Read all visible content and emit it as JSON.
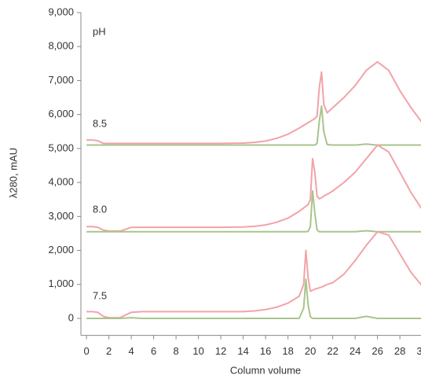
{
  "chart_data": {
    "type": "line",
    "x_label": "Column volume",
    "y_label": "λ280, mAU",
    "annotations": [
      "pH",
      "8.5",
      "8.0",
      "7.5"
    ],
    "x": [
      0,
      0.5,
      1,
      1.5,
      2,
      2.5,
      3,
      4,
      5,
      6,
      8,
      10,
      12,
      14,
      15,
      16,
      17,
      18,
      19,
      19.4,
      19.6,
      19.8,
      20,
      20.2,
      20.4,
      20.6,
      20.8,
      21,
      21.2,
      21.5,
      22,
      23,
      24,
      25,
      26,
      27,
      28,
      29,
      30
    ],
    "xlim": [
      -0.5,
      30.5
    ],
    "ylim": [
      -500,
      9000
    ],
    "xticks": [
      0,
      2,
      4,
      6,
      8,
      10,
      12,
      14,
      16,
      18,
      20,
      22,
      24,
      26,
      28,
      30
    ],
    "yticks": [
      0,
      {
        "value": 1000,
        "label": "1,000"
      },
      {
        "value": 2000,
        "label": "2,000"
      },
      {
        "value": 3000,
        "label": "3,000"
      },
      {
        "value": 4000,
        "label": "4,000"
      },
      {
        "value": 5000,
        "label": "5,000"
      },
      {
        "value": 6000,
        "label": "6,000"
      },
      {
        "value": 7000,
        "label": "7,000"
      },
      {
        "value": 8000,
        "label": "8,000"
      },
      {
        "value": 9000,
        "label": "9,000"
      }
    ],
    "grid": false,
    "series": [
      {
        "color": "#f2a3a8",
        "values": [
          5250,
          5250,
          5230,
          5150,
          5150,
          5150,
          5150,
          5150,
          5150,
          5150,
          5150,
          5150,
          5150,
          5160,
          5180,
          5220,
          5300,
          5420,
          5600,
          5680,
          5720,
          5760,
          5800,
          5840,
          5880,
          5950,
          6800,
          7250,
          6300,
          6050,
          6200,
          6500,
          6850,
          7300,
          7550,
          7300,
          6700,
          6200,
          5750
        ]
      },
      {
        "color": "#a9c48c",
        "values": [
          5100,
          5100,
          5100,
          5100,
          5100,
          5100,
          5100,
          5100,
          5100,
          5100,
          5100,
          5100,
          5100,
          5100,
          5100,
          5100,
          5100,
          5100,
          5100,
          5100,
          5100,
          5100,
          5100,
          5100,
          5100,
          5150,
          5800,
          6250,
          5500,
          5120,
          5100,
          5100,
          5100,
          5130,
          5100,
          5100,
          5100,
          5100,
          5100
        ]
      },
      {
        "color": "#f2a3a8",
        "values": [
          2700,
          2700,
          2680,
          2600,
          2570,
          2570,
          2570,
          2680,
          2680,
          2680,
          2680,
          2680,
          2680,
          2690,
          2710,
          2750,
          2830,
          2950,
          3150,
          3250,
          3300,
          3350,
          3500,
          4700,
          4300,
          3600,
          3520,
          3550,
          3600,
          3650,
          3750,
          4000,
          4300,
          4700,
          5100,
          4900,
          4300,
          3700,
          3200
        ]
      },
      {
        "color": "#a9c48c",
        "values": [
          2550,
          2550,
          2550,
          2550,
          2550,
          2550,
          2550,
          2550,
          2550,
          2550,
          2550,
          2550,
          2550,
          2550,
          2550,
          2550,
          2550,
          2550,
          2550,
          2550,
          2550,
          2560,
          2700,
          3750,
          3100,
          2600,
          2550,
          2550,
          2550,
          2550,
          2550,
          2550,
          2550,
          2580,
          2550,
          2550,
          2550,
          2550,
          2550
        ]
      },
      {
        "color": "#f2a3a8",
        "values": [
          200,
          200,
          180,
          60,
          20,
          20,
          20,
          180,
          200,
          200,
          200,
          200,
          200,
          200,
          220,
          260,
          330,
          450,
          650,
          1000,
          2000,
          1200,
          800,
          830,
          860,
          880,
          900,
          920,
          950,
          1000,
          1050,
          1300,
          1700,
          2150,
          2550,
          2450,
          1900,
          1350,
          950
        ]
      },
      {
        "color": "#a9c48c",
        "values": [
          0,
          0,
          0,
          0,
          0,
          0,
          0,
          20,
          0,
          0,
          0,
          0,
          0,
          0,
          0,
          0,
          0,
          0,
          0,
          300,
          1150,
          400,
          50,
          0,
          0,
          0,
          0,
          0,
          0,
          0,
          0,
          0,
          0,
          60,
          0,
          0,
          0,
          0,
          0
        ]
      }
    ]
  }
}
